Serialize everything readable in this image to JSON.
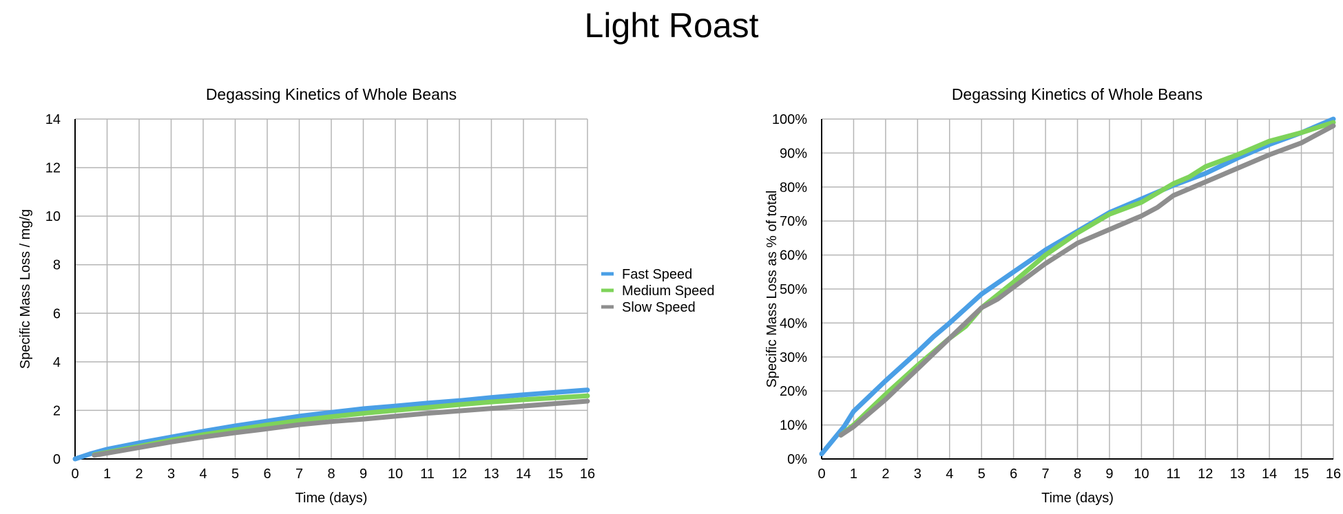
{
  "page": {
    "title": "Light Roast"
  },
  "colors": {
    "fast": "#4a9fe6",
    "medium": "#7ed35a",
    "slow": "#8e8e8e"
  },
  "chart_data": [
    {
      "type": "line",
      "title": "Degassing Kinetics of Whole Beans",
      "xlabel": "Time (days)",
      "ylabel": "Specific Mass Loss / mg/g",
      "xlim": [
        0,
        16
      ],
      "ylim": [
        0,
        14
      ],
      "x_ticks": [
        "0",
        "1",
        "2",
        "3",
        "4",
        "5",
        "6",
        "7",
        "8",
        "9",
        "10",
        "11",
        "12",
        "13",
        "14",
        "15",
        "16"
      ],
      "y_ticks": [
        "0",
        "2",
        "4",
        "6",
        "8",
        "10",
        "12",
        "14"
      ],
      "grid": true,
      "legend": "right",
      "series": [
        {
          "name": "Fast Speed",
          "color": "#4a9fe6",
          "x": [
            0,
            0.5,
            1,
            2,
            3,
            4,
            5,
            6,
            7,
            8,
            9,
            10,
            11,
            12,
            13,
            14,
            15,
            16
          ],
          "y": [
            0,
            0.22,
            0.4,
            0.66,
            0.9,
            1.14,
            1.36,
            1.56,
            1.76,
            1.92,
            2.07,
            2.18,
            2.3,
            2.4,
            2.53,
            2.64,
            2.74,
            2.84
          ]
        },
        {
          "name": "Medium Speed",
          "color": "#7ed35a",
          "x": [
            0.6,
            1,
            2,
            3,
            4,
            5,
            6,
            7,
            8,
            9,
            10,
            11,
            12,
            13,
            14,
            15,
            16
          ],
          "y": [
            0.17,
            0.27,
            0.52,
            0.78,
            1.0,
            1.2,
            1.4,
            1.58,
            1.74,
            1.88,
            2.0,
            2.12,
            2.24,
            2.35,
            2.44,
            2.52,
            2.6
          ]
        },
        {
          "name": "Slow Speed",
          "color": "#8e8e8e",
          "x": [
            0.6,
            1,
            2,
            3,
            4,
            5,
            6,
            7,
            8,
            9,
            10,
            11,
            12,
            13,
            14,
            15,
            16
          ],
          "y": [
            0.15,
            0.24,
            0.47,
            0.7,
            0.9,
            1.08,
            1.24,
            1.41,
            1.54,
            1.64,
            1.76,
            1.88,
            1.98,
            2.08,
            2.18,
            2.28,
            2.38
          ]
        }
      ]
    },
    {
      "type": "line",
      "title": "Degassing Kinetics of Whole Beans",
      "xlabel": "Time (days)",
      "ylabel": "Specific Mass Loss as % of total",
      "xlim": [
        0,
        16
      ],
      "ylim": [
        0,
        100
      ],
      "x_ticks": [
        "0",
        "1",
        "2",
        "3",
        "4",
        "5",
        "6",
        "7",
        "8",
        "9",
        "10",
        "11",
        "12",
        "13",
        "14",
        "15",
        "16"
      ],
      "y_ticks": [
        "0%",
        "10%",
        "20%",
        "30%",
        "40%",
        "50%",
        "60%",
        "70%",
        "80%",
        "90%",
        "100%"
      ],
      "grid": true,
      "series": [
        {
          "name": "Fast Speed",
          "color": "#4a9fe6",
          "x": [
            0,
            0.7,
            1,
            2,
            3,
            3.5,
            4,
            5,
            6,
            7,
            8,
            9,
            10,
            11,
            12,
            13,
            14,
            15,
            16
          ],
          "y": [
            1.5,
            9.5,
            14,
            23,
            31.5,
            36,
            40,
            48.5,
            55,
            61.5,
            67,
            72.5,
            76.5,
            80.5,
            84,
            88.5,
            92.5,
            96,
            100
          ]
        },
        {
          "name": "Medium Speed",
          "color": "#7ed35a",
          "x": [
            0.6,
            1,
            2,
            3,
            4,
            4.5,
            5,
            6,
            7,
            8,
            9,
            10,
            11,
            11.5,
            12,
            13,
            14,
            15,
            16
          ],
          "y": [
            7,
            10,
            19,
            27.5,
            35.5,
            39,
            44.5,
            52,
            60,
            66.5,
            72,
            75.5,
            81,
            83,
            86,
            89.5,
            93.5,
            96,
            99
          ]
        },
        {
          "name": "Slow Speed",
          "color": "#8e8e8e",
          "x": [
            0.6,
            1,
            2,
            3,
            4,
            5,
            5.5,
            6,
            7,
            8,
            9,
            10,
            10.5,
            11,
            12,
            13,
            14,
            15,
            16
          ],
          "y": [
            7,
            9.5,
            17.5,
            26.5,
            35.5,
            44.5,
            47,
            50.5,
            57.5,
            63.5,
            67.5,
            71.5,
            74,
            77.5,
            81.5,
            85.5,
            89.5,
            93,
            98
          ]
        }
      ]
    }
  ]
}
